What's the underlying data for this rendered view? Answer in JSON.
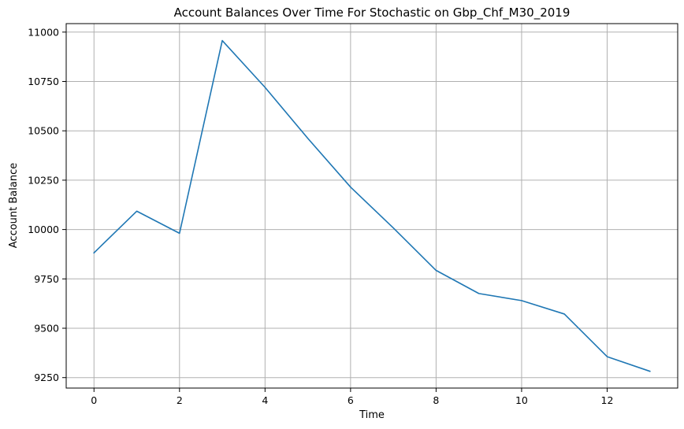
{
  "chart_data": {
    "type": "line",
    "title": "Account Balances Over Time For Stochastic on Gbp_Chf_M30_2019",
    "xlabel": "Time",
    "ylabel": "Account Balance",
    "x": [
      0,
      1,
      2,
      3,
      4,
      5,
      6,
      7,
      8,
      9,
      10,
      11,
      12,
      13
    ],
    "series": [
      {
        "values": [
          9882,
          10093,
          9981,
          10957,
          10720,
          10462,
          10215,
          10008,
          9793,
          9676,
          9640,
          9572,
          9356,
          9282
        ],
        "color": "#1f77b4"
      }
    ],
    "xlim": [
      -0.65,
      13.65
    ],
    "ylim": [
      9197,
      11043
    ],
    "xticks": [
      0,
      2,
      4,
      6,
      8,
      10,
      12
    ],
    "xtick_labels": [
      "0",
      "2",
      "4",
      "6",
      "8",
      "10",
      "12"
    ],
    "yticks": [
      9250,
      9500,
      9750,
      10000,
      10250,
      10500,
      10750,
      11000
    ],
    "ytick_labels": [
      "9250",
      "9500",
      "9750",
      "10000",
      "10250",
      "10500",
      "10750",
      "11000"
    ],
    "grid": true,
    "legend": "none"
  }
}
